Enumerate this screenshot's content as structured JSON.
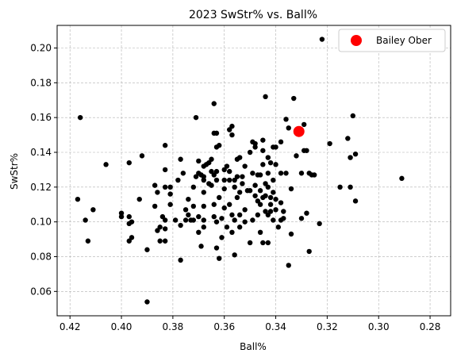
{
  "chart_data": {
    "type": "scatter",
    "title": "2023 SwStr% vs. Ball%",
    "xlabel": "Ball%",
    "ylabel": "SwStr%",
    "xlim": [
      0.425,
      0.272
    ],
    "ylim": [
      0.046,
      0.213
    ],
    "x_reversed": true,
    "xticks": [
      "0.42",
      "0.40",
      "0.38",
      "0.36",
      "0.34",
      "0.32",
      "0.30",
      "0.28"
    ],
    "xtick_values": [
      0.42,
      0.4,
      0.38,
      0.36,
      0.34,
      0.32,
      0.3,
      0.28
    ],
    "yticks": [
      "0.06",
      "0.08",
      "0.10",
      "0.12",
      "0.14",
      "0.16",
      "0.18",
      "0.20"
    ],
    "ytick_values": [
      0.06,
      0.08,
      0.1,
      0.12,
      0.14,
      0.16,
      0.18,
      0.2
    ],
    "grid": true,
    "legend_position": "top-right",
    "colors": {
      "others": "#000000",
      "highlight": "#ff0000",
      "grid": "#b0b0b0"
    },
    "series": [
      {
        "name": "",
        "points": [
          [
            0.417,
            0.113
          ],
          [
            0.416,
            0.16
          ],
          [
            0.414,
            0.101
          ],
          [
            0.413,
            0.089
          ],
          [
            0.411,
            0.107
          ],
          [
            0.406,
            0.133
          ],
          [
            0.4,
            0.105
          ],
          [
            0.4,
            0.103
          ],
          [
            0.397,
            0.134
          ],
          [
            0.397,
            0.103
          ],
          [
            0.397,
            0.099
          ],
          [
            0.396,
            0.091
          ],
          [
            0.396,
            0.1
          ],
          [
            0.397,
            0.089
          ],
          [
            0.393,
            0.113
          ],
          [
            0.392,
            0.138
          ],
          [
            0.39,
            0.084
          ],
          [
            0.39,
            0.054
          ],
          [
            0.387,
            0.121
          ],
          [
            0.387,
            0.109
          ],
          [
            0.386,
            0.117
          ],
          [
            0.386,
            0.095
          ],
          [
            0.385,
            0.097
          ],
          [
            0.385,
            0.089
          ],
          [
            0.384,
            0.103
          ],
          [
            0.383,
            0.12
          ],
          [
            0.383,
            0.13
          ],
          [
            0.383,
            0.144
          ],
          [
            0.383,
            0.101
          ],
          [
            0.383,
            0.096
          ],
          [
            0.383,
            0.089
          ],
          [
            0.381,
            0.12
          ],
          [
            0.381,
            0.116
          ],
          [
            0.381,
            0.11
          ],
          [
            0.379,
            0.101
          ],
          [
            0.378,
            0.124
          ],
          [
            0.377,
            0.136
          ],
          [
            0.377,
            0.098
          ],
          [
            0.377,
            0.078
          ],
          [
            0.376,
            0.128
          ],
          [
            0.375,
            0.107
          ],
          [
            0.375,
            0.101
          ],
          [
            0.374,
            0.104
          ],
          [
            0.374,
            0.113
          ],
          [
            0.373,
            0.101
          ],
          [
            0.372,
            0.12
          ],
          [
            0.372,
            0.109
          ],
          [
            0.372,
            0.101
          ],
          [
            0.371,
            0.16
          ],
          [
            0.371,
            0.126
          ],
          [
            0.37,
            0.135
          ],
          [
            0.37,
            0.128
          ],
          [
            0.37,
            0.103
          ],
          [
            0.37,
            0.094
          ],
          [
            0.369,
            0.086
          ],
          [
            0.369,
            0.127
          ],
          [
            0.368,
            0.132
          ],
          [
            0.368,
            0.126
          ],
          [
            0.368,
            0.124
          ],
          [
            0.368,
            0.117
          ],
          [
            0.368,
            0.109
          ],
          [
            0.368,
            0.101
          ],
          [
            0.368,
            0.097
          ],
          [
            0.367,
            0.133
          ],
          [
            0.366,
            0.134
          ],
          [
            0.366,
            0.122
          ],
          [
            0.365,
            0.136
          ],
          [
            0.365,
            0.129
          ],
          [
            0.365,
            0.121
          ],
          [
            0.364,
            0.168
          ],
          [
            0.364,
            0.151
          ],
          [
            0.364,
            0.127
          ],
          [
            0.364,
            0.11
          ],
          [
            0.364,
            0.103
          ],
          [
            0.363,
            0.151
          ],
          [
            0.363,
            0.143
          ],
          [
            0.363,
            0.129
          ],
          [
            0.363,
            0.124
          ],
          [
            0.363,
            0.1
          ],
          [
            0.363,
            0.085
          ],
          [
            0.362,
            0.079
          ],
          [
            0.362,
            0.144
          ],
          [
            0.362,
            0.114
          ],
          [
            0.361,
            0.102
          ],
          [
            0.361,
            0.091
          ],
          [
            0.36,
            0.13
          ],
          [
            0.36,
            0.124
          ],
          [
            0.36,
            0.119
          ],
          [
            0.36,
            0.108
          ],
          [
            0.359,
            0.132
          ],
          [
            0.359,
            0.097
          ],
          [
            0.358,
            0.153
          ],
          [
            0.358,
            0.129
          ],
          [
            0.358,
            0.124
          ],
          [
            0.358,
            0.11
          ],
          [
            0.357,
            0.155
          ],
          [
            0.357,
            0.15
          ],
          [
            0.357,
            0.104
          ],
          [
            0.357,
            0.094
          ],
          [
            0.356,
            0.081
          ],
          [
            0.356,
            0.124
          ],
          [
            0.356,
            0.12
          ],
          [
            0.356,
            0.101
          ],
          [
            0.355,
            0.136
          ],
          [
            0.355,
            0.126
          ],
          [
            0.355,
            0.114
          ],
          [
            0.354,
            0.137
          ],
          [
            0.354,
            0.117
          ],
          [
            0.354,
            0.104
          ],
          [
            0.354,
            0.097
          ],
          [
            0.353,
            0.126
          ],
          [
            0.353,
            0.122
          ],
          [
            0.352,
            0.107
          ],
          [
            0.352,
            0.1
          ],
          [
            0.352,
            0.132
          ],
          [
            0.351,
            0.118
          ],
          [
            0.35,
            0.14
          ],
          [
            0.35,
            0.118
          ],
          [
            0.35,
            0.088
          ],
          [
            0.349,
            0.128
          ],
          [
            0.349,
            0.101
          ],
          [
            0.349,
            0.146
          ],
          [
            0.348,
            0.143
          ],
          [
            0.348,
            0.145
          ],
          [
            0.348,
            0.121
          ],
          [
            0.348,
            0.115
          ],
          [
            0.347,
            0.127
          ],
          [
            0.347,
            0.112
          ],
          [
            0.347,
            0.104
          ],
          [
            0.346,
            0.127
          ],
          [
            0.346,
            0.118
          ],
          [
            0.346,
            0.11
          ],
          [
            0.346,
            0.094
          ],
          [
            0.345,
            0.147
          ],
          [
            0.345,
            0.141
          ],
          [
            0.345,
            0.133
          ],
          [
            0.345,
            0.114
          ],
          [
            0.345,
            0.088
          ],
          [
            0.344,
            0.172
          ],
          [
            0.344,
            0.122
          ],
          [
            0.344,
            0.115
          ],
          [
            0.344,
            0.106
          ],
          [
            0.343,
            0.137
          ],
          [
            0.343,
            0.128
          ],
          [
            0.343,
            0.12
          ],
          [
            0.343,
            0.104
          ],
          [
            0.343,
            0.088
          ],
          [
            0.342,
            0.134
          ],
          [
            0.342,
            0.114
          ],
          [
            0.342,
            0.11
          ],
          [
            0.342,
            0.106
          ],
          [
            0.341,
            0.143
          ],
          [
            0.341,
            0.124
          ],
          [
            0.341,
            0.117
          ],
          [
            0.341,
            0.101
          ],
          [
            0.34,
            0.143
          ],
          [
            0.34,
            0.133
          ],
          [
            0.34,
            0.113
          ],
          [
            0.34,
            0.107
          ],
          [
            0.339,
            0.097
          ],
          [
            0.338,
            0.146
          ],
          [
            0.338,
            0.128
          ],
          [
            0.338,
            0.111
          ],
          [
            0.338,
            0.101
          ],
          [
            0.337,
            0.106
          ],
          [
            0.337,
            0.102
          ],
          [
            0.336,
            0.159
          ],
          [
            0.336,
            0.128
          ],
          [
            0.335,
            0.154
          ],
          [
            0.335,
            0.075
          ],
          [
            0.334,
            0.119
          ],
          [
            0.334,
            0.093
          ],
          [
            0.333,
            0.171
          ],
          [
            0.332,
            0.138
          ],
          [
            0.33,
            0.128
          ],
          [
            0.33,
            0.102
          ],
          [
            0.329,
            0.156
          ],
          [
            0.329,
            0.141
          ],
          [
            0.328,
            0.141
          ],
          [
            0.328,
            0.105
          ],
          [
            0.327,
            0.083
          ],
          [
            0.327,
            0.128
          ],
          [
            0.326,
            0.127
          ],
          [
            0.325,
            0.127
          ],
          [
            0.323,
            0.099
          ],
          [
            0.322,
            0.205
          ],
          [
            0.319,
            0.145
          ],
          [
            0.315,
            0.12
          ],
          [
            0.312,
            0.148
          ],
          [
            0.311,
            0.137
          ],
          [
            0.311,
            0.12
          ],
          [
            0.31,
            0.161
          ],
          [
            0.309,
            0.139
          ],
          [
            0.309,
            0.112
          ],
          [
            0.291,
            0.125
          ]
        ]
      },
      {
        "name": "Bailey Ober",
        "points": [
          [
            0.331,
            0.152
          ]
        ]
      }
    ]
  }
}
